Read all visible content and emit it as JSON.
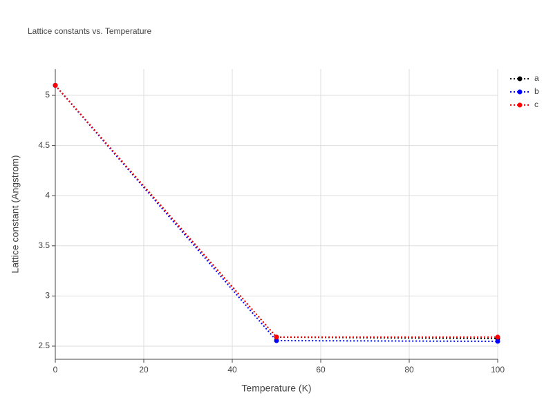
{
  "chart_data": {
    "type": "line",
    "title": "Lattice constants vs. Temperature",
    "x_label": "Temperature (K)",
    "y_label": "Lattice constant (Angstrom)",
    "x": [
      0,
      50,
      100
    ],
    "series": [
      {
        "name": "a",
        "color": "#000000",
        "values": [
          5.1,
          2.59,
          2.576
        ]
      },
      {
        "name": "b",
        "color": "#0000ff",
        "values": [
          5.1,
          2.555,
          2.548
        ]
      },
      {
        "name": "c",
        "color": "#ff0000",
        "values": [
          5.1,
          2.59,
          2.59
        ]
      }
    ],
    "xlim": [
      0,
      100
    ],
    "xticks": [
      0,
      20,
      40,
      60,
      80,
      100
    ],
    "ylim": [
      2.369,
      5.262
    ],
    "yticks": [
      2.5,
      3,
      3.5,
      4,
      4.5,
      5
    ],
    "grid": true,
    "legend": "top-right"
  }
}
